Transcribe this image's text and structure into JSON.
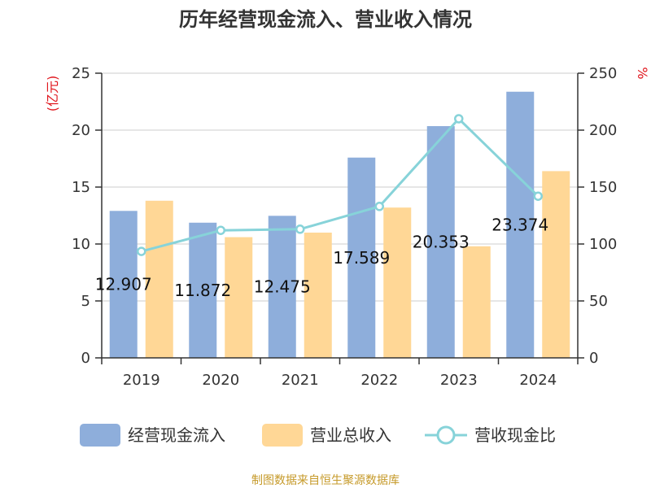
{
  "colors": {
    "bar1": "#8eaedb",
    "bar2": "#ffd796",
    "line": "#87d3d9",
    "axis": "#333333",
    "grid": "#cccccc",
    "unit": "#e0161d",
    "source": "#c69a2a"
  },
  "source": "制图数据来自恒生聚源数据库",
  "chart_data": {
    "type": "bar",
    "title": "历年经营现金流入、营业收入情况",
    "categories": [
      "2019",
      "2020",
      "2021",
      "2022",
      "2023",
      "2024"
    ],
    "series": [
      {
        "name": "经营现金流入",
        "type": "bar",
        "axis": "left",
        "values": [
          12.907,
          11.872,
          12.475,
          17.589,
          20.353,
          23.374
        ],
        "labels": [
          "12.907",
          "11.872",
          "12.475",
          "17.589",
          "20.353",
          "23.374"
        ]
      },
      {
        "name": "营业总收入",
        "type": "bar",
        "axis": "left",
        "values": [
          13.8,
          10.6,
          11.0,
          13.2,
          9.8,
          16.4
        ]
      },
      {
        "name": "营收现金比",
        "type": "line",
        "axis": "right",
        "values": [
          93.5,
          112,
          113,
          133,
          210,
          142
        ]
      }
    ],
    "y_left": {
      "label": "(亿元)",
      "min": 0,
      "max": 25,
      "ticks": [
        "0",
        "5",
        "10",
        "15",
        "20",
        "25"
      ]
    },
    "y_right": {
      "label": "%",
      "min": 0,
      "max": 250,
      "ticks": [
        "0",
        "50",
        "100",
        "150",
        "200",
        "250"
      ]
    },
    "legend": [
      "经营现金流入",
      "营业总收入",
      "营收现金比"
    ],
    "grid": true
  }
}
